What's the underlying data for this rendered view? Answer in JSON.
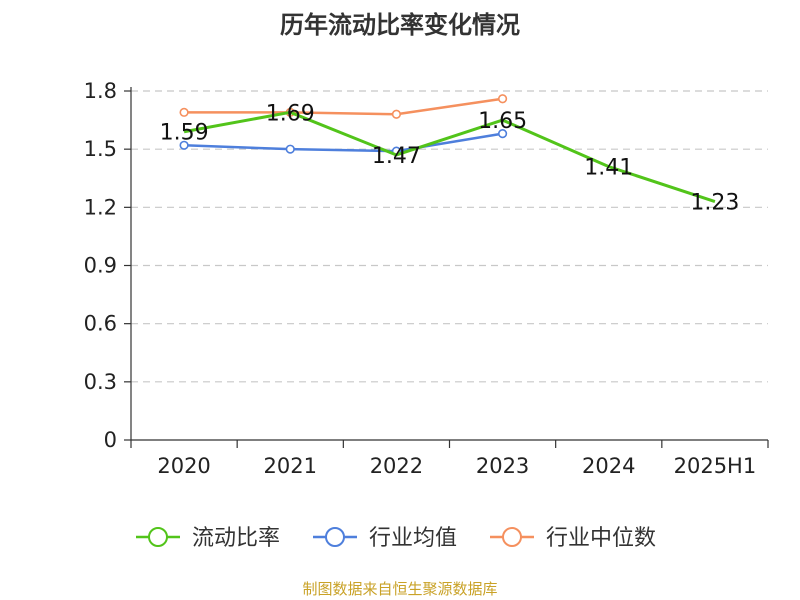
{
  "colors": {
    "current_ratio": "#52c41a",
    "industry_avg": "#4e7fdc",
    "industry_median": "#f5905e",
    "grid": "#c8c8c8",
    "axis": "#333333",
    "source": "#c9a227"
  },
  "chart_data": {
    "type": "line",
    "title": "历年流动比率变化情况",
    "categories": [
      "2020",
      "2021",
      "2022",
      "2023",
      "2024",
      "2025H1"
    ],
    "y_ticks": [
      "0",
      "0.3",
      "0.6",
      "0.9",
      "1.2",
      "1.5",
      "1.8"
    ],
    "ylim": [
      0,
      1.8
    ],
    "grid": true,
    "legend_position": "bottom",
    "series": [
      {
        "name": "流动比率",
        "key": "current_ratio",
        "values": [
          1.59,
          1.69,
          1.47,
          1.65,
          1.41,
          1.23
        ],
        "labels": [
          "1.59",
          "1.69",
          "1.47",
          "1.65",
          "1.41",
          "1.23"
        ]
      },
      {
        "name": "行业均值",
        "key": "industry_avg",
        "values": [
          1.52,
          1.5,
          1.49,
          1.58,
          null,
          null
        ]
      },
      {
        "name": "行业中位数",
        "key": "industry_median",
        "values": [
          1.69,
          1.69,
          1.68,
          1.76,
          null,
          null
        ]
      }
    ]
  },
  "source": "制图数据来自恒生聚源数据库"
}
